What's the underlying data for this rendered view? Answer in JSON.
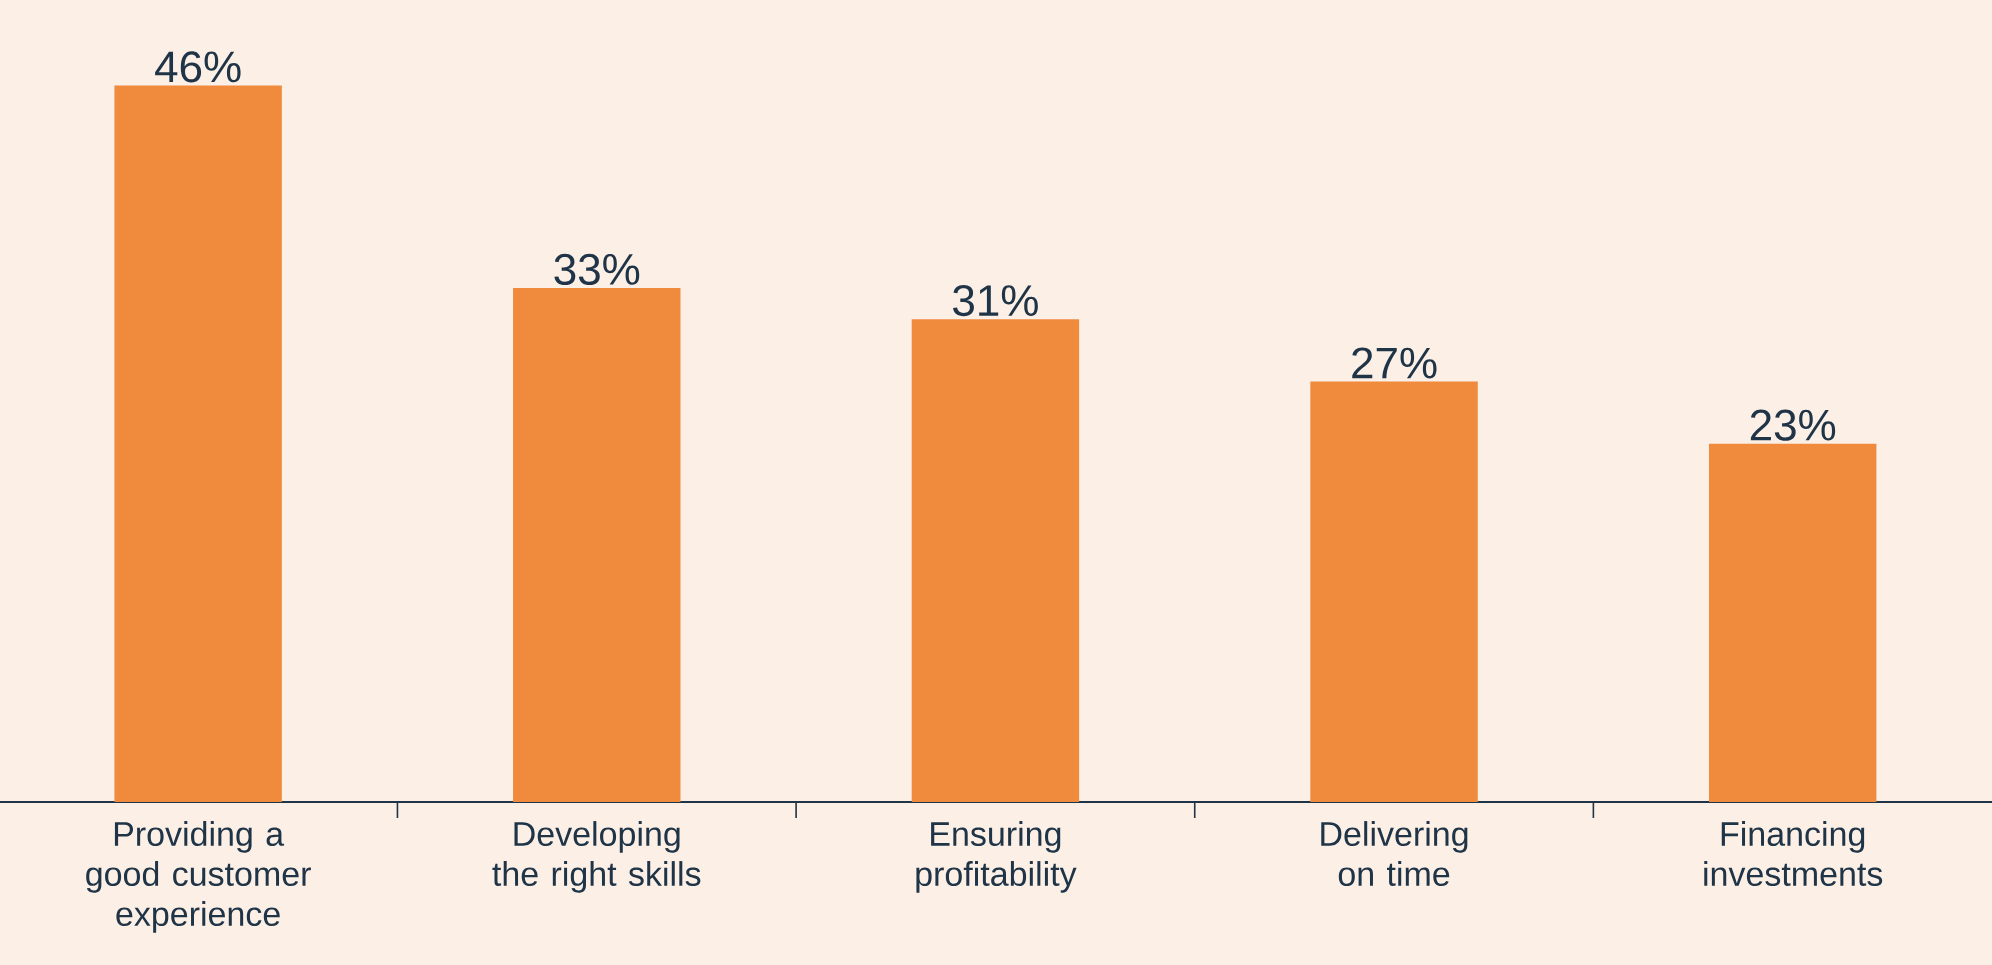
{
  "chart_data": {
    "type": "bar",
    "categories": [
      "Providing a good customer experience",
      "Developing the right skills",
      "Ensuring profitability",
      "Delivering on time",
      "Financing investments"
    ],
    "values": [
      46,
      33,
      31,
      27,
      23
    ],
    "value_labels": [
      "46%",
      "33%",
      "31%",
      "27%",
      "23%"
    ],
    "color": "#f08a3c"
  }
}
